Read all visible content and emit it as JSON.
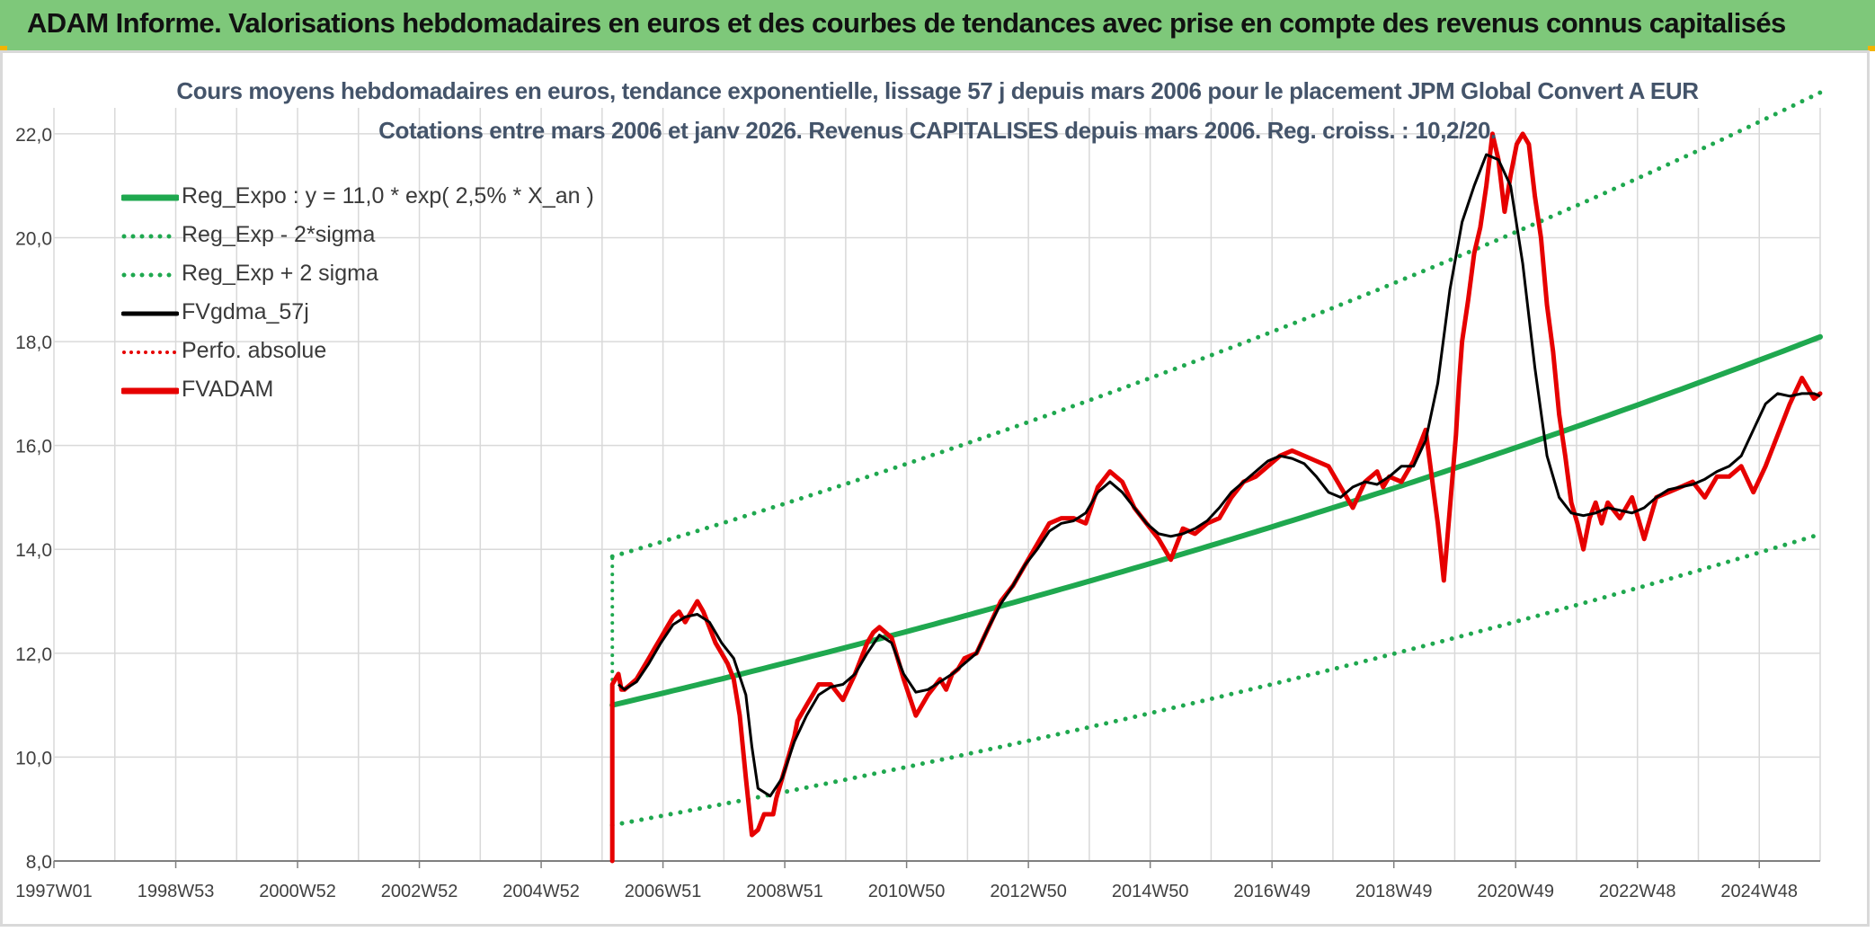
{
  "header": {
    "title": "ADAM Informe. Valorisations hebdomadaires en euros et des courbes de tendances avec prise en compte des revenus connus capitalisés"
  },
  "colors": {
    "banner": "#7ec87a",
    "trend": "#1fa84f",
    "sigma": "#1fa84f",
    "smooth": "#000000",
    "price": "#e60000",
    "grid": "#d9d9d9",
    "subtitle": "#44546a"
  },
  "chart_data": {
    "type": "line",
    "title": "Cours moyens hebdomadaires en euros, tendance exponentielle, lissage 57 j depuis mars 2006 pour le placement JPM Global Convert A EUR",
    "subtitle": "Cotations entre mars 2006 et janv 2026. Revenus CAPITALISES depuis mars 2006. Reg. croiss. : 10,2/20.",
    "x_ticks": [
      "1997W01",
      "1998W53",
      "2000W52",
      "2002W52",
      "2004W52",
      "2006W51",
      "2008W51",
      "2010W50",
      "2012W50",
      "2014W50",
      "2016W49",
      "2018W49",
      "2020W49",
      "2022W48",
      "2024W48"
    ],
    "xlim": [
      1997.0,
      2026.1
    ],
    "ylim": [
      8,
      22.5
    ],
    "y_ticks": [
      "8,0",
      "10,0",
      "12,0",
      "14,0",
      "16,0",
      "18,0",
      "20,0",
      "22,0"
    ],
    "grid": true,
    "legend_position": "top-left",
    "legend": [
      {
        "label": "Reg_Expo : y = 11,0 * exp( 2,5% *  X_an )",
        "style": "solid-thick",
        "color": "#1fa84f"
      },
      {
        "label": "Reg_Exp - 2*sigma",
        "style": "dotted",
        "color": "#1fa84f"
      },
      {
        "label": "Reg_Exp + 2 sigma",
        "style": "dotted",
        "color": "#1fa84f"
      },
      {
        "label": "FVgdma_57j",
        "style": "solid",
        "color": "#000000"
      },
      {
        "label": "Perfo. absolue",
        "style": "dotted",
        "color": "#e60000"
      },
      {
        "label": "FVADAM",
        "style": "solid-thick",
        "color": "#e60000"
      }
    ],
    "trend": {
      "a": 11.0,
      "rate": 0.025,
      "x0": 2006.2,
      "x_end": 2026.1,
      "lower_factor": 0.79,
      "upper_factor": 1.26
    },
    "series": [
      {
        "name": "FVADAM",
        "x": [
          2006.2,
          2006.2,
          2006.25,
          2006.3,
          2006.35,
          2006.4,
          2006.5,
          2006.6,
          2006.7,
          2006.8,
          2006.9,
          2007.0,
          2007.1,
          2007.2,
          2007.3,
          2007.4,
          2007.5,
          2007.6,
          2007.7,
          2007.8,
          2007.9,
          2008.0,
          2008.1,
          2008.2,
          2008.3,
          2008.4,
          2008.5,
          2008.6,
          2008.7,
          2008.8,
          2008.85,
          2008.9,
          2009.0,
          2009.1,
          2009.2,
          2009.25,
          2009.3,
          2009.4,
          2009.5,
          2009.6,
          2009.8,
          2010.0,
          2010.2,
          2010.4,
          2010.5,
          2010.6,
          2010.8,
          2011.0,
          2011.2,
          2011.4,
          2011.6,
          2011.7,
          2011.8,
          2011.9,
          2012.0,
          2012.2,
          2012.4,
          2012.6,
          2012.8,
          2013.0,
          2013.2,
          2013.4,
          2013.6,
          2013.8,
          2014.0,
          2014.2,
          2014.4,
          2014.6,
          2014.8,
          2015.0,
          2015.2,
          2015.4,
          2015.5,
          2015.6,
          2015.8,
          2016.0,
          2016.2,
          2016.4,
          2016.6,
          2016.8,
          2017.0,
          2017.2,
          2017.4,
          2017.6,
          2017.8,
          2018.0,
          2018.2,
          2018.4,
          2018.6,
          2018.8,
          2018.9,
          2019.0,
          2019.2,
          2019.4,
          2019.6,
          2019.8,
          2019.9,
          2020.0,
          2020.1,
          2020.15,
          2020.2,
          2020.3,
          2020.4,
          2020.5,
          2020.6,
          2020.7,
          2020.8,
          2020.9,
          2021.0,
          2021.1,
          2021.2,
          2021.3,
          2021.4,
          2021.5,
          2021.6,
          2021.7,
          2021.8,
          2021.9,
          2022.0,
          2022.1,
          2022.2,
          2022.3,
          2022.4,
          2022.5,
          2022.6,
          2022.8,
          2023.0,
          2023.2,
          2023.4,
          2023.6,
          2023.8,
          2024.0,
          2024.2,
          2024.4,
          2024.6,
          2024.8,
          2025.0,
          2025.2,
          2025.4,
          2025.6,
          2025.8,
          2026.0,
          2026.1
        ],
        "values": [
          8.0,
          11.4,
          11.5,
          11.6,
          11.3,
          11.3,
          11.4,
          11.5,
          11.7,
          11.9,
          12.1,
          12.3,
          12.5,
          12.7,
          12.8,
          12.6,
          12.8,
          13.0,
          12.8,
          12.5,
          12.2,
          12.0,
          11.8,
          11.5,
          10.8,
          9.6,
          8.5,
          8.6,
          8.9,
          8.9,
          8.9,
          9.2,
          9.6,
          10.0,
          10.4,
          10.7,
          10.8,
          11.0,
          11.2,
          11.4,
          11.4,
          11.1,
          11.6,
          12.2,
          12.4,
          12.5,
          12.3,
          11.5,
          10.8,
          11.2,
          11.5,
          11.3,
          11.6,
          11.7,
          11.9,
          12.0,
          12.5,
          13.0,
          13.3,
          13.7,
          14.1,
          14.5,
          14.6,
          14.6,
          14.5,
          15.2,
          15.5,
          15.3,
          14.8,
          14.5,
          14.2,
          13.8,
          14.1,
          14.4,
          14.3,
          14.5,
          14.6,
          15.0,
          15.3,
          15.4,
          15.6,
          15.8,
          15.9,
          15.8,
          15.7,
          15.6,
          15.2,
          14.8,
          15.3,
          15.5,
          15.2,
          15.4,
          15.3,
          15.7,
          16.3,
          14.5,
          13.4,
          14.8,
          16.2,
          17.2,
          18.0,
          18.8,
          19.7,
          20.2,
          21.0,
          22.0,
          21.5,
          20.5,
          21.2,
          21.8,
          22.0,
          21.8,
          20.8,
          20.0,
          18.7,
          17.8,
          16.6,
          15.8,
          14.9,
          14.5,
          14.0,
          14.6,
          14.9,
          14.5,
          14.9,
          14.6,
          15.0,
          14.2,
          15.0,
          15.1,
          15.2,
          15.3,
          15.0,
          15.4,
          15.4,
          15.6,
          15.1,
          15.6,
          16.2,
          16.8,
          17.3,
          16.9,
          17.0
        ]
      },
      {
        "name": "FVgdma_57j",
        "x": [
          2006.3,
          2006.4,
          2006.6,
          2006.8,
          2007.0,
          2007.2,
          2007.4,
          2007.6,
          2007.8,
          2008.0,
          2008.2,
          2008.4,
          2008.5,
          2008.6,
          2008.8,
          2009.0,
          2009.2,
          2009.4,
          2009.6,
          2009.8,
          2010.0,
          2010.2,
          2010.4,
          2010.6,
          2010.8,
          2011.0,
          2011.2,
          2011.4,
          2011.6,
          2011.8,
          2012.0,
          2012.2,
          2012.4,
          2012.6,
          2012.8,
          2013.0,
          2013.2,
          2013.4,
          2013.6,
          2013.8,
          2014.0,
          2014.2,
          2014.4,
          2014.6,
          2014.8,
          2015.0,
          2015.2,
          2015.4,
          2015.6,
          2015.8,
          2016.0,
          2016.2,
          2016.4,
          2016.6,
          2016.8,
          2017.0,
          2017.2,
          2017.4,
          2017.6,
          2017.8,
          2018.0,
          2018.2,
          2018.4,
          2018.6,
          2018.8,
          2019.0,
          2019.2,
          2019.4,
          2019.6,
          2019.8,
          2020.0,
          2020.2,
          2020.4,
          2020.6,
          2020.8,
          2021.0,
          2021.2,
          2021.4,
          2021.6,
          2021.8,
          2022.0,
          2022.2,
          2022.4,
          2022.6,
          2022.8,
          2023.0,
          2023.2,
          2023.4,
          2023.6,
          2023.8,
          2024.0,
          2024.2,
          2024.4,
          2024.6,
          2024.8,
          2025.0,
          2025.2,
          2025.4,
          2025.6,
          2025.8,
          2026.0,
          2026.1
        ],
        "values": [
          11.4,
          11.3,
          11.45,
          11.8,
          12.2,
          12.55,
          12.7,
          12.75,
          12.6,
          12.2,
          11.9,
          11.2,
          10.2,
          9.4,
          9.25,
          9.6,
          10.3,
          10.8,
          11.2,
          11.35,
          11.4,
          11.6,
          12.0,
          12.35,
          12.2,
          11.6,
          11.25,
          11.3,
          11.45,
          11.6,
          11.8,
          12.0,
          12.5,
          12.95,
          13.3,
          13.7,
          14.0,
          14.35,
          14.5,
          14.55,
          14.7,
          15.1,
          15.3,
          15.1,
          14.8,
          14.5,
          14.3,
          14.25,
          14.3,
          14.4,
          14.55,
          14.8,
          15.1,
          15.3,
          15.5,
          15.7,
          15.8,
          15.75,
          15.65,
          15.4,
          15.1,
          15.0,
          15.2,
          15.3,
          15.25,
          15.4,
          15.6,
          15.6,
          16.1,
          17.2,
          19.0,
          20.3,
          21.0,
          21.6,
          21.5,
          21.0,
          19.5,
          17.5,
          15.8,
          15.0,
          14.7,
          14.65,
          14.7,
          14.8,
          14.75,
          14.7,
          14.8,
          15.0,
          15.15,
          15.2,
          15.25,
          15.35,
          15.5,
          15.6,
          15.8,
          16.3,
          16.8,
          17.0,
          16.95,
          17.0,
          17.0,
          16.95
        ]
      }
    ]
  }
}
